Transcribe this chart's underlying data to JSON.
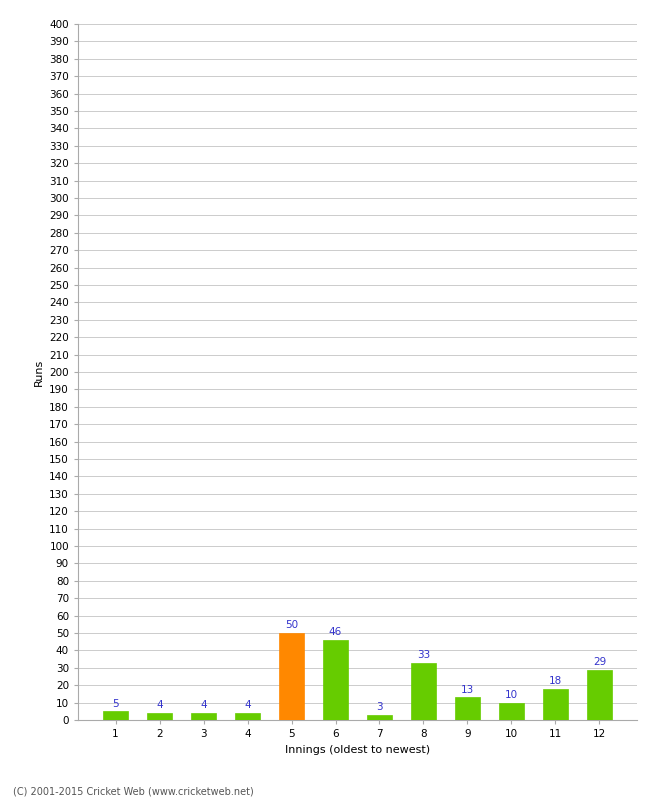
{
  "categories": [
    1,
    2,
    3,
    4,
    5,
    6,
    7,
    8,
    9,
    10,
    11,
    12
  ],
  "values": [
    5,
    4,
    4,
    4,
    50,
    46,
    3,
    33,
    13,
    10,
    18,
    29
  ],
  "bar_colors": [
    "#66cc00",
    "#66cc00",
    "#66cc00",
    "#66cc00",
    "#ff8800",
    "#66cc00",
    "#66cc00",
    "#66cc00",
    "#66cc00",
    "#66cc00",
    "#66cc00",
    "#66cc00"
  ],
  "ylabel": "Runs",
  "xlabel": "Innings (oldest to newest)",
  "ylim": [
    0,
    400
  ],
  "yticks": [
    0,
    10,
    20,
    30,
    40,
    50,
    60,
    70,
    80,
    90,
    100,
    110,
    120,
    130,
    140,
    150,
    160,
    170,
    180,
    190,
    200,
    210,
    220,
    230,
    240,
    250,
    260,
    270,
    280,
    290,
    300,
    310,
    320,
    330,
    340,
    350,
    360,
    370,
    380,
    390,
    400
  ],
  "label_color": "#3333cc",
  "label_fontsize": 7.5,
  "tick_fontsize": 7.5,
  "axis_label_fontsize": 8,
  "footer": "(C) 2001-2015 Cricket Web (www.cricketweb.net)",
  "background_color": "#ffffff",
  "grid_color": "#cccccc",
  "bar_width": 0.55
}
